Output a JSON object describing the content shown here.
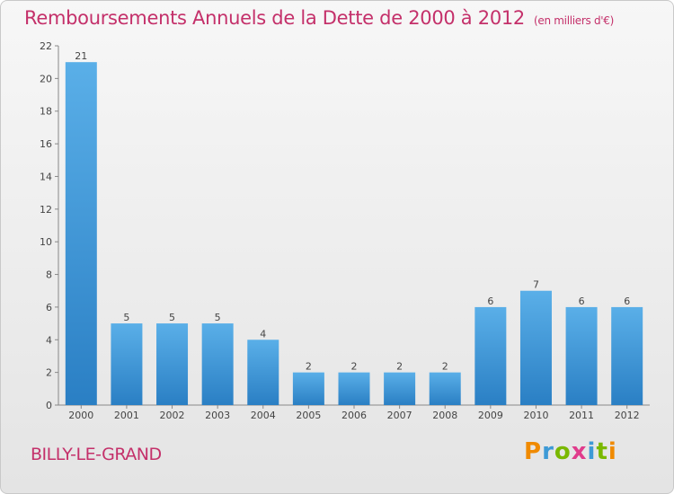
{
  "chart_data": {
    "type": "bar",
    "title": "Remboursements Annuels de la Dette de 2000 à 2012",
    "subtitle": "(en milliers d'€)",
    "categories": [
      "2000",
      "2001",
      "2002",
      "2003",
      "2004",
      "2005",
      "2006",
      "2007",
      "2008",
      "2009",
      "2010",
      "2011",
      "2012"
    ],
    "values": [
      21,
      5,
      5,
      5,
      4,
      2,
      2,
      2,
      2,
      6,
      7,
      6,
      6
    ],
    "ylim": [
      0,
      22
    ],
    "yticks": [
      0,
      2,
      4,
      6,
      8,
      10,
      12,
      14,
      16,
      18,
      20,
      22
    ],
    "grid": false,
    "bar_color": "#4a9fdc"
  },
  "footer": {
    "town": "BILLY-LE-GRAND",
    "logo_letters": [
      "P",
      "r",
      "o",
      "x",
      "i",
      "t",
      "i"
    ],
    "logo_colors": [
      "#f08a00",
      "#3d9ad6",
      "#7ab800",
      "#e03c8c",
      "#3d9ad6",
      "#7ab800",
      "#f08a00"
    ]
  }
}
